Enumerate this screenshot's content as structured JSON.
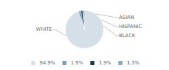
{
  "chart_data": {
    "type": "pie",
    "categories": [
      "WHITE",
      "ASIAN",
      "HISPANIC",
      "BLACK"
    ],
    "values": [
      94.9,
      1.9,
      1.9,
      1.3
    ],
    "value_labels": [
      "94.9%",
      "1.9%",
      "1.9%",
      "1.3%"
    ],
    "colors": [
      "#d4dfe8",
      "#7a9db8",
      "#1e3a5f",
      "#8aaabf"
    ],
    "legend": "bottom"
  }
}
